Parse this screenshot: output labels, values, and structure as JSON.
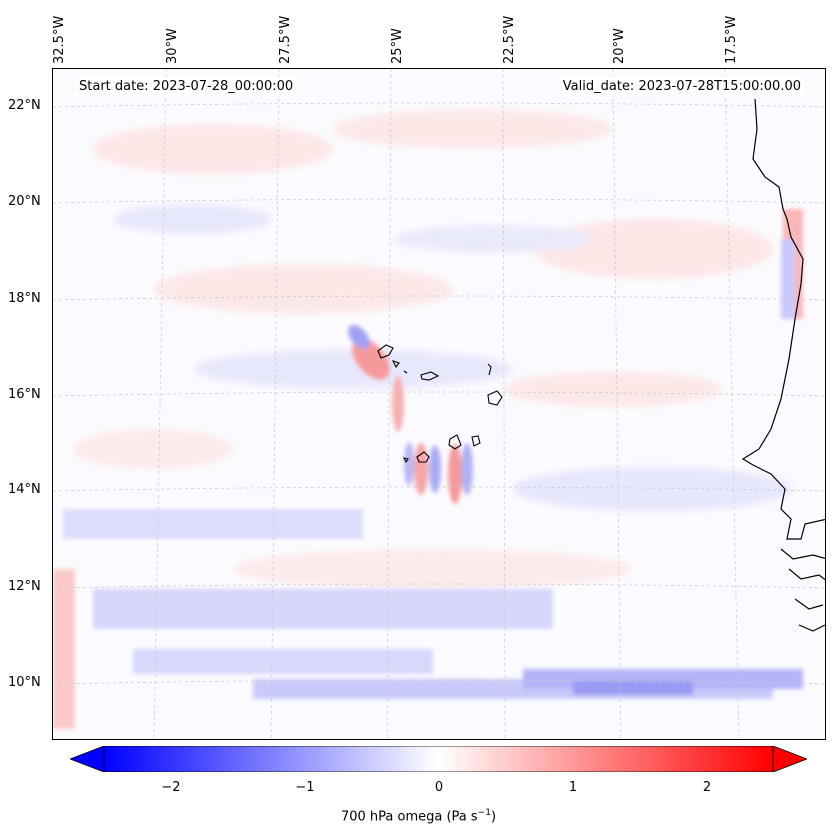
{
  "map": {
    "lon_labels": [
      "32.5°W",
      "30°W",
      "27.5°W",
      "25°W",
      "22.5°W",
      "20°W",
      "17.5°W"
    ],
    "lat_labels": [
      "22°N",
      "20°N",
      "18°N",
      "16°N",
      "14°N",
      "12°N",
      "10°N"
    ],
    "start_date": "Start date: 2023-07-28_00:00:00",
    "valid_date": "Valid_date: 2023-07-28T15:00:00.00",
    "lon_range": [
      -33,
      -15.5
    ],
    "lat_range": [
      8.8,
      22.8
    ],
    "field": "700 hPa omega",
    "colormap": {
      "negative": "#0000ff",
      "zero": "#ffffff",
      "positive": "#ff0000"
    },
    "coastline_color": "#000000",
    "gridlines": true
  },
  "colorbar": {
    "ticks": [
      "−2",
      "−1",
      "0",
      "1",
      "2"
    ],
    "tick_values": [
      -2,
      -1,
      0,
      1,
      2
    ],
    "range": [
      -2.5,
      2.5
    ],
    "extend": "both",
    "label_main": "700 hPa omega (Pa s",
    "label_sup": "−1",
    "label_end": ")"
  }
}
